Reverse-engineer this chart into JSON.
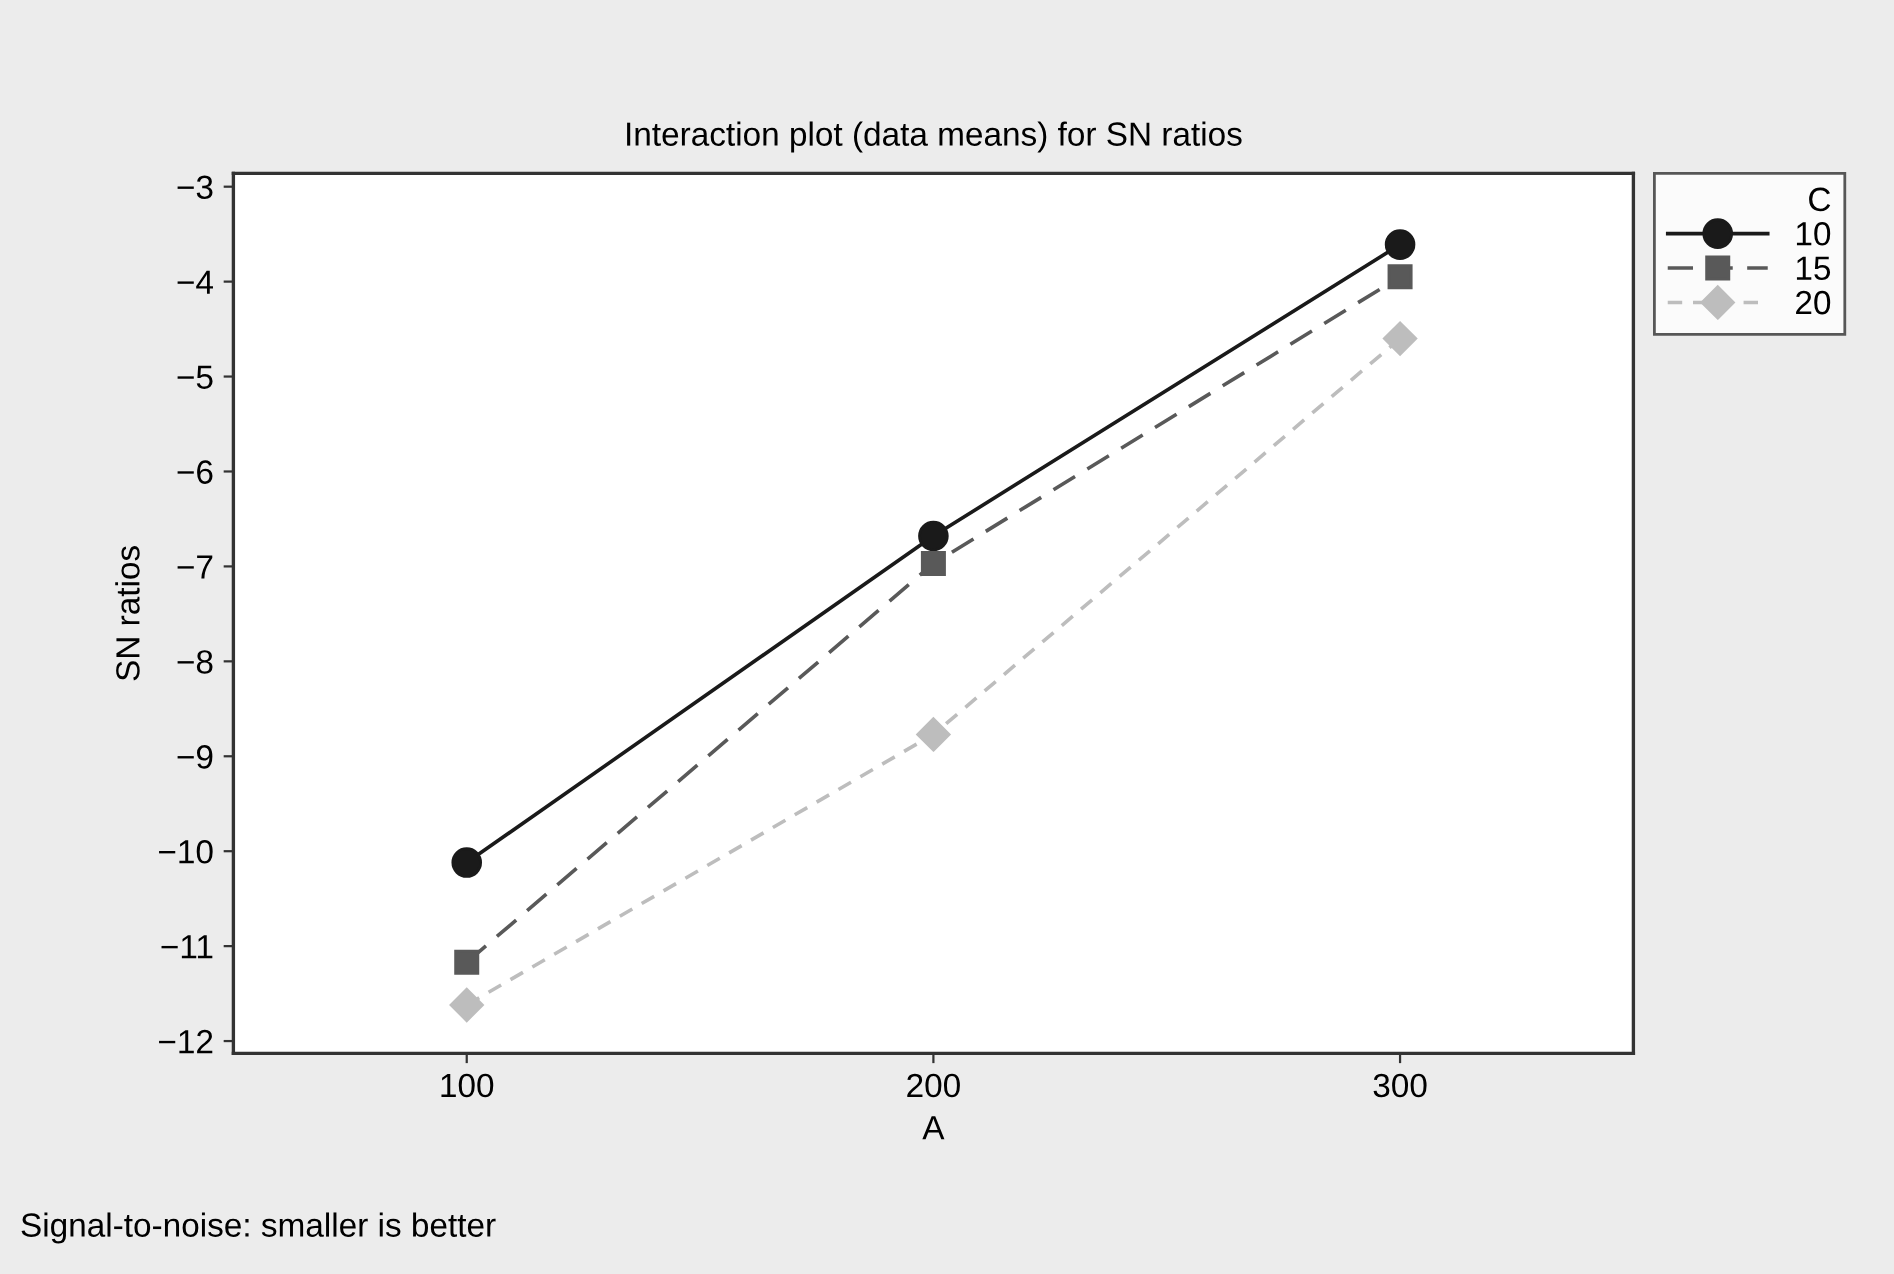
{
  "chart_data": {
    "type": "line",
    "title": "Interaction plot (data means) for SN ratios",
    "xlabel": "A",
    "ylabel": "SN ratios",
    "legend_title": "C",
    "x": [
      100,
      200,
      300
    ],
    "series": [
      {
        "name": "10",
        "color": "#1a1a1a",
        "marker": "circle",
        "line_style": "solid",
        "values": [
          -10.12,
          -6.68,
          -3.61
        ]
      },
      {
        "name": "15",
        "color": "#595959",
        "marker": "square",
        "line_style": "dashed",
        "values": [
          -11.17,
          -6.97,
          -3.95
        ]
      },
      {
        "name": "20",
        "color": "#bdbdbd",
        "marker": "diamond",
        "line_style": "dotted",
        "values": [
          -11.62,
          -8.77,
          -4.6
        ]
      }
    ],
    "xlim": [
      50,
      350
    ],
    "xticks": [
      100,
      200,
      300
    ],
    "ylim": [
      -12.13,
      -2.86
    ],
    "yticks": [
      {
        "value": -12,
        "label": "−12"
      },
      {
        "value": -11,
        "label": "−11"
      },
      {
        "value": -10,
        "label": "−10"
      },
      {
        "value": -9,
        "label": "−9"
      },
      {
        "value": -8,
        "label": "−8"
      },
      {
        "value": -7,
        "label": "−7"
      },
      {
        "value": -6,
        "label": "−6"
      },
      {
        "value": -5,
        "label": "−5"
      },
      {
        "value": -4,
        "label": "−4"
      },
      {
        "value": -3,
        "label": "−3"
      }
    ],
    "grid": false,
    "legend": "top right",
    "annotations": [
      "Signal-to-noise: smaller is better"
    ]
  }
}
